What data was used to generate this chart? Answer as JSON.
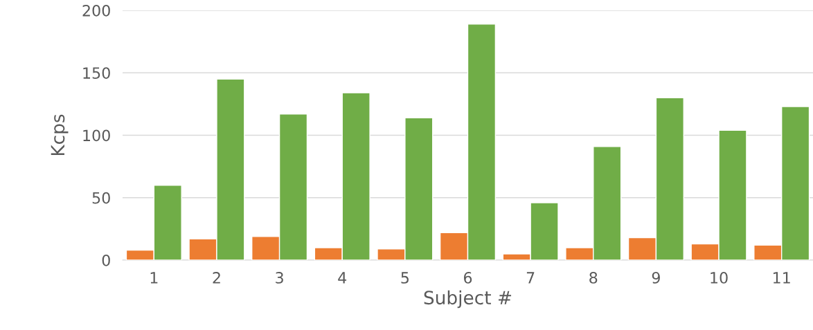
{
  "chart_data": {
    "type": "bar",
    "xlabel": "Subject #",
    "ylabel": "Kcps",
    "categories": [
      "1",
      "2",
      "3",
      "4",
      "5",
      "6",
      "7",
      "8",
      "9",
      "10",
      "11"
    ],
    "series": [
      {
        "color": "#ed7d31",
        "values": [
          8,
          17,
          19,
          10,
          9,
          22,
          5,
          10,
          18,
          13,
          12
        ]
      },
      {
        "color": "#70ad47",
        "values": [
          60,
          145,
          117,
          134,
          114,
          189,
          46,
          91,
          130,
          104,
          123
        ]
      }
    ],
    "ylim": [
      0,
      200
    ],
    "yticks": [
      0,
      50,
      100,
      150,
      200
    ],
    "grid": "y",
    "legend": false
  }
}
